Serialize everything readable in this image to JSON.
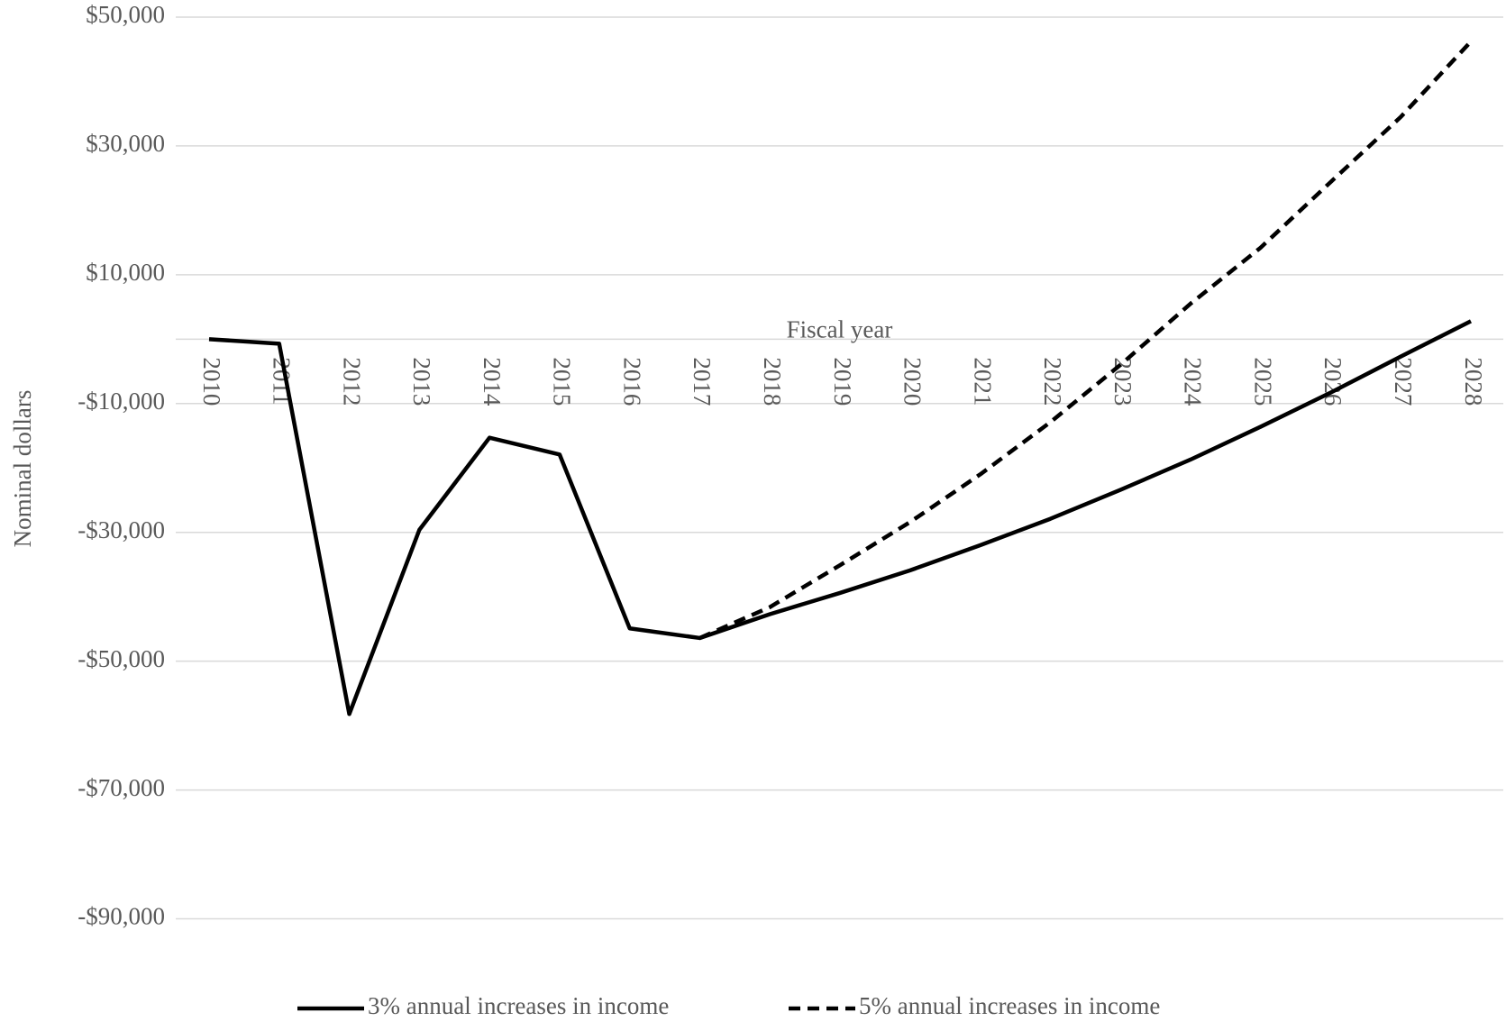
{
  "chart_data": {
    "type": "line",
    "y_label": "Nominal dollars",
    "x_label": "Fiscal year",
    "categories": [
      "2010",
      "2011",
      "2012",
      "2013",
      "2014",
      "2015",
      "2016",
      "2017",
      "2018",
      "2019",
      "2020",
      "2021",
      "2022",
      "2023",
      "2024",
      "2025",
      "2026",
      "2027",
      "2028"
    ],
    "series": [
      {
        "name": "3% annual increases in income",
        "color": "#000000",
        "dash": false,
        "values": [
          0,
          -700,
          -58200,
          -29600,
          -15300,
          -17900,
          -44900,
          -46400,
          -42700,
          -39400,
          -35900,
          -32000,
          -27900,
          -23400,
          -18700,
          -13600,
          -8300,
          -2700,
          2800
        ]
      },
      {
        "name": "5% annual increases in income",
        "color": "#000000",
        "dash": true,
        "values": [
          null,
          null,
          null,
          null,
          null,
          null,
          null,
          -46400,
          -41600,
          -35100,
          -28400,
          -21000,
          -12900,
          -4000,
          5500,
          14200,
          24400,
          34500,
          46200
        ]
      }
    ],
    "ylim": [
      -100000,
      50000
    ],
    "yticks": [
      {
        "value": 50000,
        "label": "$50,000"
      },
      {
        "value": 30000,
        "label": "$30,000"
      },
      {
        "value": 10000,
        "label": "$10,000"
      },
      {
        "value": -10000,
        "label": "-$10,000"
      },
      {
        "value": -30000,
        "label": "-$30,000"
      },
      {
        "value": -50000,
        "label": "-$50,000"
      },
      {
        "value": -70000,
        "label": "-$70,000"
      },
      {
        "value": -90000,
        "label": "-$90,000"
      }
    ],
    "grid": true,
    "legend": "bottom"
  }
}
